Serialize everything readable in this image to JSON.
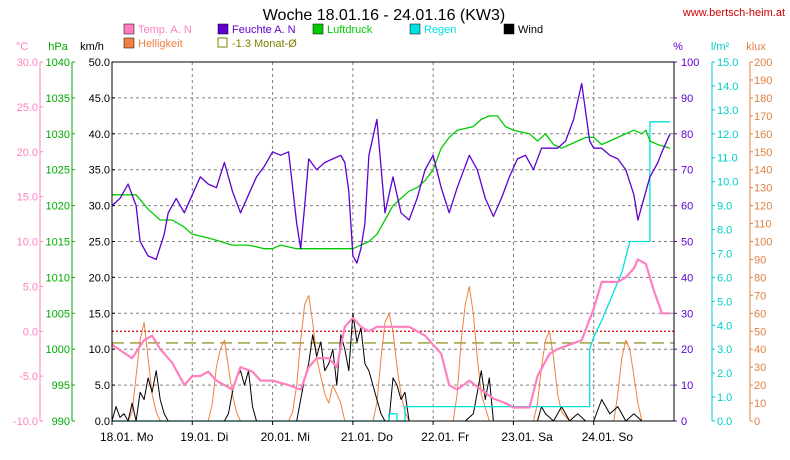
{
  "title": "Woche 18.01.16 - 24.01.16 (KW3)",
  "site": "www.bertsch-heim.at",
  "colors": {
    "temp": "#ff80c0",
    "hum": "#6000d0",
    "press": "#00cc00",
    "rain": "#00e0e0",
    "wind": "#000000",
    "bright": "#f08040",
    "avg": "#808000",
    "zeroline": "#cc0000",
    "grid": "#808080",
    "title": "#000000",
    "site": "#cc0000"
  },
  "axes": {
    "temp": {
      "unit": "°C",
      "min": -10,
      "max": 30,
      "step": 5,
      "color": "#ff80c0"
    },
    "press": {
      "unit": "hPa",
      "min": 990,
      "max": 1040,
      "step": 5,
      "color": "#00aa00"
    },
    "wind": {
      "unit": "km/h",
      "min": 0,
      "max": 50,
      "step": 5,
      "color": "#000000"
    },
    "hum": {
      "unit": "%",
      "min": 0,
      "max": 100,
      "step": 10,
      "color": "#6000d0"
    },
    "rain": {
      "unit": "l/m²",
      "min": 0,
      "max": 15,
      "step": 1,
      "color": "#00cccc"
    },
    "bright": {
      "unit": "klux",
      "min": 0,
      "max": 200,
      "step": 10,
      "color": "#e08040"
    }
  },
  "legend": [
    {
      "key": "temp",
      "label": "Temp. A. N",
      "color": "#ff80c0",
      "style": "fill"
    },
    {
      "key": "hum",
      "label": "Feuchte A. N",
      "color": "#6000d0",
      "style": "fill"
    },
    {
      "key": "press",
      "label": "Luftdruck",
      "color": "#00cc00",
      "style": "fill"
    },
    {
      "key": "rain",
      "label": "Regen",
      "color": "#00e0e0",
      "style": "fill"
    },
    {
      "key": "wind",
      "label": "Wind",
      "color": "#000000",
      "style": "fill"
    },
    {
      "key": "bright",
      "label": "Helligkeit",
      "color": "#f08040",
      "style": "fill"
    },
    {
      "key": "avg",
      "label": "-1.3 Monat-Ø",
      "color": "#808000",
      "style": "outline"
    }
  ],
  "days": [
    "18.01. Mo",
    "19.01. Di",
    "20.01. Mi",
    "21.01. Do",
    "22.01. Fr",
    "23.01. Sa",
    "24.01. So"
  ],
  "chart_data": {
    "type": "line",
    "title": "Woche 18.01.16 - 24.01.16 (KW3)",
    "x_unit": "days since 18.01. 00:00",
    "x_range": [
      0,
      7
    ],
    "grid": true,
    "legend_position": "top",
    "reference_lines": [
      {
        "name": "0 °C",
        "axis": "temp",
        "value": 0
      },
      {
        "name": "-1.3 Monat-Ø",
        "axis": "temp",
        "value": -1.3
      }
    ],
    "series": [
      {
        "name": "Temp. A. N",
        "axis": "temp",
        "x": [
          0,
          0.25,
          0.4,
          0.5,
          0.6,
          0.75,
          0.9,
          1.0,
          1.1,
          1.2,
          1.3,
          1.5,
          1.6,
          1.75,
          1.85,
          2.0,
          2.2,
          2.35,
          2.45,
          2.55,
          2.7,
          2.8,
          2.9,
          3.0,
          3.1,
          3.2,
          3.3,
          3.5,
          3.7,
          3.9,
          4.1,
          4.2,
          4.3,
          4.45,
          4.6,
          4.75,
          4.9,
          5.0,
          5.2,
          5.3,
          5.45,
          5.55,
          5.7,
          5.85,
          6.0,
          6.1,
          6.2,
          6.3,
          6.4,
          6.5,
          6.55,
          6.65,
          6.75,
          6.85,
          6.95
        ],
        "values": [
          -1.5,
          -3,
          -1,
          -0.5,
          -2,
          -3.5,
          -6,
          -5,
          -5,
          -4.5,
          -5.5,
          -6.5,
          -4,
          -4.5,
          -5.5,
          -5.5,
          -6,
          -6.5,
          -4,
          -3,
          -3,
          -4,
          0.5,
          1.5,
          0.5,
          0,
          0.5,
          0.5,
          0.5,
          -0.5,
          -2.5,
          -6,
          -6.5,
          -5.5,
          -6.5,
          -7.5,
          -8,
          -8.5,
          -8.5,
          -5,
          -2.5,
          -2,
          -1.5,
          -1,
          2.5,
          5.5,
          5.5,
          5.5,
          6,
          7,
          8,
          7.5,
          4.5,
          2,
          2
        ]
      },
      {
        "name": "Feuchte A. N",
        "axis": "hum",
        "x": [
          0,
          0.1,
          0.2,
          0.3,
          0.35,
          0.45,
          0.55,
          0.65,
          0.7,
          0.8,
          0.9,
          1.0,
          1.1,
          1.2,
          1.3,
          1.4,
          1.5,
          1.6,
          1.7,
          1.8,
          1.9,
          2.0,
          2.1,
          2.2,
          2.3,
          2.35,
          2.4,
          2.45,
          2.55,
          2.65,
          2.75,
          2.85,
          2.9,
          2.95,
          3.0,
          3.05,
          3.1,
          3.15,
          3.2,
          3.3,
          3.4,
          3.5,
          3.6,
          3.7,
          3.8,
          3.9,
          4.0,
          4.1,
          4.2,
          4.3,
          4.45,
          4.55,
          4.65,
          4.75,
          4.85,
          4.95,
          5.05,
          5.15,
          5.25,
          5.35,
          5.45,
          5.55,
          5.65,
          5.75,
          5.85,
          5.95,
          6.0,
          6.05,
          6.1,
          6.2,
          6.3,
          6.4,
          6.5,
          6.55,
          6.6,
          6.7,
          6.8,
          6.85,
          6.95
        ],
        "values": [
          60,
          62,
          66,
          60,
          50,
          46,
          45,
          52,
          58,
          62,
          58,
          63,
          68,
          66,
          65,
          72,
          64,
          58,
          63,
          68,
          71,
          75,
          74,
          75,
          55,
          48,
          60,
          73,
          70,
          72,
          73,
          74,
          72,
          64,
          46,
          44,
          48,
          55,
          74,
          84,
          58,
          68,
          58,
          56,
          62,
          70,
          74,
          65,
          58,
          65,
          74,
          70,
          62,
          57,
          62,
          68,
          73,
          74,
          70,
          76,
          76,
          76,
          78,
          84,
          94,
          78,
          76,
          76,
          76,
          74,
          73,
          70,
          63,
          56,
          60,
          68,
          72,
          75,
          80
        ]
      },
      {
        "name": "Luftdruck",
        "axis": "press",
        "x": [
          0,
          0.3,
          0.45,
          0.6,
          0.75,
          0.9,
          1.0,
          1.2,
          1.35,
          1.5,
          1.7,
          1.9,
          2.0,
          2.1,
          2.3,
          2.5,
          2.7,
          2.9,
          3.0,
          3.1,
          3.2,
          3.3,
          3.4,
          3.5,
          3.6,
          3.7,
          3.8,
          3.9,
          4.0,
          4.1,
          4.2,
          4.3,
          4.5,
          4.6,
          4.7,
          4.8,
          4.9,
          5.0,
          5.2,
          5.3,
          5.4,
          5.5,
          5.6,
          5.7,
          5.8,
          5.9,
          6.0,
          6.1,
          6.2,
          6.3,
          6.4,
          6.5,
          6.6,
          6.65,
          6.7,
          6.8,
          6.95
        ],
        "values": [
          1021.5,
          1021.5,
          1019.5,
          1018,
          1018,
          1017,
          1016,
          1015.5,
          1015,
          1014.5,
          1014.5,
          1014,
          1014,
          1014.5,
          1014,
          1014,
          1014,
          1014,
          1014,
          1014.5,
          1015,
          1016,
          1018,
          1020,
          1021,
          1022,
          1022.5,
          1023.5,
          1025,
          1028,
          1029.5,
          1030.5,
          1031,
          1032,
          1032.5,
          1032.5,
          1031,
          1030.5,
          1030,
          1029,
          1030,
          1028.5,
          1028,
          1028.5,
          1029,
          1029.5,
          1029.5,
          1028.5,
          1029,
          1029.5,
          1030,
          1030.5,
          1030,
          1030.5,
          1029,
          1028.5,
          1028
        ]
      },
      {
        "name": "Regen",
        "axis": "rain",
        "x": [
          0,
          3.45,
          3.45,
          3.55,
          3.55,
          3.65,
          3.65,
          5.95,
          5.95,
          6.0,
          6.1,
          6.2,
          6.35,
          6.45,
          6.5,
          6.5,
          6.65,
          6.65,
          6.7,
          6.7,
          6.95
        ],
        "values": [
          0,
          0,
          0.3,
          0.3,
          0,
          0,
          0.6,
          0.6,
          3.0,
          3.5,
          4.2,
          5.0,
          6.2,
          7.5,
          7.5,
          7.5,
          7.5,
          7.5,
          7.5,
          12.5,
          12.5
        ]
      },
      {
        "name": "Wind",
        "axis": "wind",
        "x": [
          0,
          0.05,
          0.1,
          0.15,
          0.2,
          0.25,
          0.3,
          0.35,
          0.4,
          0.45,
          0.5,
          0.55,
          0.6,
          0.65,
          0.7,
          0.8,
          1.0,
          1.2,
          1.3,
          1.4,
          1.45,
          1.5,
          1.55,
          1.6,
          1.65,
          1.7,
          1.75,
          1.8,
          1.9,
          2.0,
          2.2,
          2.3,
          2.4,
          2.45,
          2.5,
          2.55,
          2.6,
          2.65,
          2.7,
          2.75,
          2.8,
          2.85,
          2.9,
          2.95,
          3.0,
          3.05,
          3.1,
          3.15,
          3.2,
          3.25,
          3.3,
          3.35,
          3.4,
          3.45,
          3.5,
          3.55,
          3.6,
          3.65,
          3.7,
          3.8,
          4.0,
          4.2,
          4.4,
          4.5,
          4.55,
          4.6,
          4.65,
          4.7,
          4.75,
          4.8,
          4.85,
          4.9,
          4.95,
          5.0,
          5.2,
          5.3,
          5.35,
          5.4,
          5.5,
          5.6,
          5.7,
          5.8,
          5.9,
          6.0,
          6.1,
          6.2,
          6.3,
          6.4,
          6.5,
          6.6,
          6.7,
          6.8,
          6.9,
          6.95
        ],
        "values": [
          0,
          2,
          0.5,
          1,
          0,
          2.5,
          0,
          4,
          3,
          6,
          4,
          7,
          3,
          1,
          0,
          0,
          0,
          0,
          0,
          0,
          1,
          4,
          6,
          7,
          5,
          7,
          2,
          0,
          0,
          0,
          0,
          0,
          6,
          8,
          12,
          9,
          11,
          7,
          8,
          10,
          5,
          12,
          10,
          7,
          15,
          11,
          13,
          8,
          7,
          5,
          3,
          1,
          0,
          0,
          6,
          5,
          3,
          4,
          0,
          0,
          0,
          0,
          0,
          1,
          4,
          7,
          3,
          6,
          0,
          0,
          0,
          0,
          0,
          0,
          0,
          0,
          2,
          1,
          0,
          2,
          0,
          1,
          0,
          0,
          3,
          1,
          2,
          0,
          1,
          0,
          0,
          0,
          0,
          0
        ]
      },
      {
        "name": "Helligkeit",
        "axis": "bright",
        "x": [
          0,
          0.2,
          0.25,
          0.3,
          0.35,
          0.4,
          0.45,
          0.5,
          0.55,
          0.6,
          0.7,
          1.0,
          1.2,
          1.25,
          1.3,
          1.35,
          1.4,
          1.45,
          1.5,
          1.55,
          1.6,
          1.7,
          2.0,
          2.2,
          2.25,
          2.3,
          2.35,
          2.4,
          2.45,
          2.5,
          2.55,
          2.6,
          2.65,
          2.7,
          2.75,
          2.8,
          2.85,
          2.9,
          3.0,
          3.25,
          3.3,
          3.35,
          3.4,
          3.45,
          3.5,
          3.55,
          3.6,
          3.65,
          3.7,
          3.8,
          4.0,
          4.25,
          4.3,
          4.35,
          4.4,
          4.45,
          4.5,
          4.55,
          4.6,
          4.7,
          5.0,
          5.25,
          5.3,
          5.35,
          5.4,
          5.45,
          5.5,
          5.55,
          5.6,
          5.7,
          6.0,
          6.25,
          6.3,
          6.35,
          6.4,
          6.45,
          6.5,
          6.55,
          6.6,
          6.7,
          6.95
        ],
        "values": [
          0,
          0,
          5,
          25,
          45,
          55,
          35,
          15,
          5,
          0,
          0,
          0,
          0,
          10,
          30,
          40,
          45,
          30,
          15,
          5,
          0,
          0,
          0,
          0,
          5,
          20,
          45,
          65,
          70,
          55,
          35,
          25,
          15,
          10,
          20,
          15,
          10,
          0,
          0,
          0,
          10,
          35,
          55,
          60,
          50,
          30,
          15,
          5,
          0,
          0,
          0,
          0,
          15,
          45,
          65,
          75,
          60,
          35,
          15,
          0,
          0,
          0,
          10,
          30,
          45,
          50,
          35,
          15,
          5,
          0,
          0,
          0,
          15,
          35,
          45,
          40,
          25,
          10,
          0,
          0,
          0
        ]
      }
    ]
  }
}
